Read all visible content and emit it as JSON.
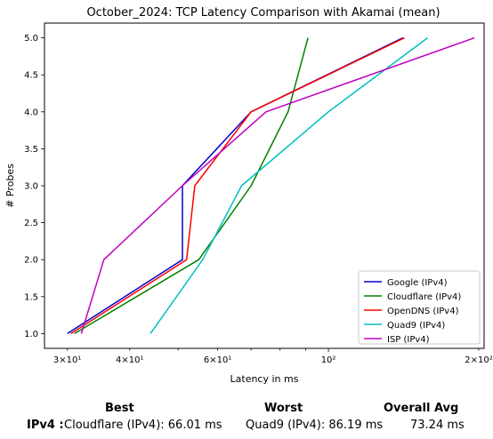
{
  "chart_data": {
    "type": "line",
    "title": "October_2024: TCP Latency Comparison with Akamai (mean)",
    "xlabel": "Latency in ms",
    "ylabel": "# Probes",
    "xscale": "log",
    "xlim": [
      27,
      205
    ],
    "ylim": [
      0.8,
      5.2
    ],
    "x_ticks": [
      {
        "value": 30,
        "label": "3×10¹",
        "minor": true
      },
      {
        "value": 40,
        "label": "4×10¹",
        "minor": true
      },
      {
        "value": 60,
        "label": "6×10¹",
        "minor": true
      },
      {
        "value": 100,
        "label": "10²",
        "minor": false
      },
      {
        "value": 200,
        "label": "2×10²",
        "minor": true
      }
    ],
    "y_ticks": [
      {
        "value": 1.0,
        "label": "1.0"
      },
      {
        "value": 1.5,
        "label": "1.5"
      },
      {
        "value": 2.0,
        "label": "2.0"
      },
      {
        "value": 2.5,
        "label": "2.5"
      },
      {
        "value": 3.0,
        "label": "3.0"
      },
      {
        "value": 3.5,
        "label": "3.5"
      },
      {
        "value": 4.0,
        "label": "4.0"
      },
      {
        "value": 4.5,
        "label": "4.5"
      },
      {
        "value": 5.0,
        "label": "5.0"
      }
    ],
    "legend_position": "lower-right",
    "series": [
      {
        "name": "Google (IPv4)",
        "color": "#0000cc",
        "x": [
          30,
          51,
          51,
          70,
          141
        ],
        "y": [
          1,
          2,
          3,
          4,
          5
        ]
      },
      {
        "name": "Cloudflare (IPv4)",
        "color": "#008000",
        "x": [
          31,
          55,
          70,
          83,
          91
        ],
        "y": [
          1,
          2,
          3,
          4,
          5
        ]
      },
      {
        "name": "OpenDNS (IPv4)",
        "color": "#ff0000",
        "x": [
          30.5,
          52,
          54,
          70,
          142
        ],
        "y": [
          1,
          2,
          3,
          4,
          5
        ]
      },
      {
        "name": "Quad9 (IPv4)",
        "color": "#00bfbf",
        "x": [
          44,
          56,
          67,
          100,
          158
        ],
        "y": [
          1,
          2,
          3,
          4,
          5
        ]
      },
      {
        "name": "ISP (IPv4)",
        "color": "#bf00bf",
        "x": [
          32,
          35.5,
          51,
          75,
          196
        ],
        "y": [
          1,
          2,
          3,
          4,
          5
        ]
      }
    ]
  },
  "summary": {
    "best_header": "Best",
    "worst_header": "Worst",
    "avg_header": "Overall Avg",
    "row_label": "IPv4 :",
    "best_value": "Cloudflare (IPv4): 66.01 ms",
    "worst_value": "Quad9 (IPv4): 86.19 ms",
    "avg_value": "73.24 ms"
  }
}
